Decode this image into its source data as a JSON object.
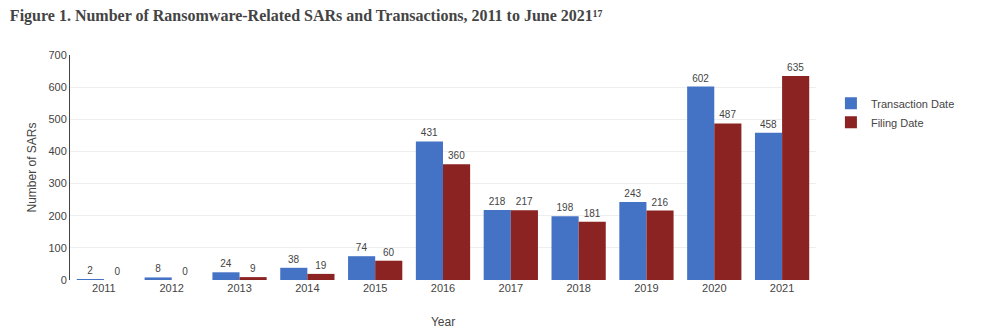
{
  "chart_data": {
    "type": "bar",
    "title": "Figure 1. Number of Ransomware-Related SARs and Transactions, 2011 to June 2021¹⁷",
    "xlabel": "Year",
    "ylabel": "Number of SARs",
    "categories": [
      "2011",
      "2012",
      "2013",
      "2014",
      "2015",
      "2016",
      "2017",
      "2018",
      "2019",
      "2020",
      "2021"
    ],
    "series": [
      {
        "name": "Transaction Date",
        "color": "#4472C4",
        "values": [
          2,
          8,
          24,
          38,
          74,
          431,
          218,
          198,
          243,
          602,
          458
        ]
      },
      {
        "name": "Filing Date",
        "color": "#8B2323",
        "values": [
          0,
          0,
          9,
          19,
          60,
          360,
          217,
          181,
          216,
          487,
          635
        ]
      }
    ],
    "ylim": [
      0,
      700
    ],
    "yticks": [
      0,
      100,
      200,
      300,
      400,
      500,
      600,
      700
    ],
    "grid": true,
    "data_labels": true,
    "legend": "right"
  }
}
